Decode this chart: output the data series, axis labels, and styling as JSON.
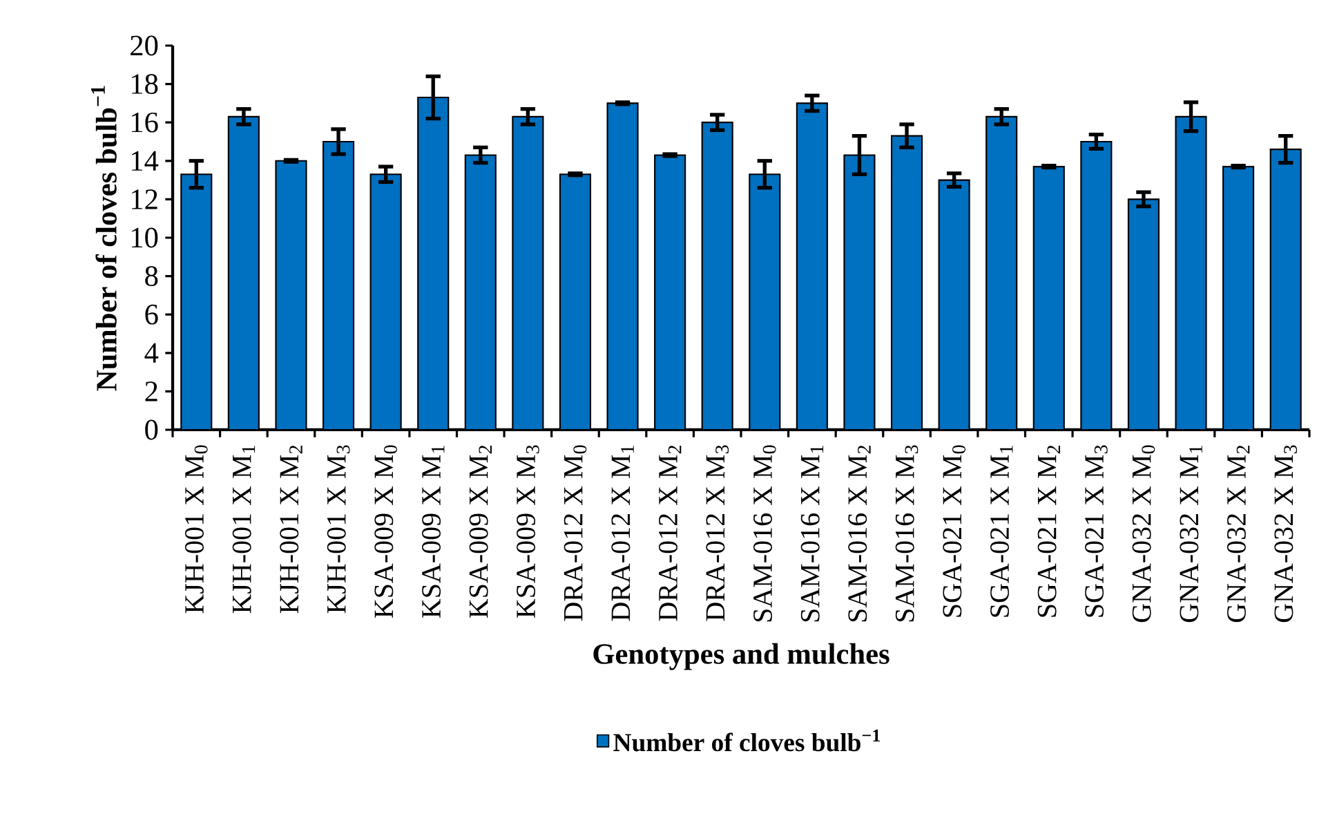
{
  "chart_data": {
    "type": "bar",
    "xlabel": "Genotypes and mulches",
    "ylabel": "Number of cloves bulb$^{−1}$",
    "categories": [
      "KJH-001 X M$_{0}$",
      "KJH-001 X M$_{1}$",
      "KJH-001 X M$_{2}$",
      "KJH-001 X M$_{3}$",
      "KSA-009 X M$_{0}$",
      "KSA-009 X M$_{1}$",
      "KSA-009 X M$_{2}$",
      "KSA-009 X M$_{3}$",
      "DRA-012 X M$_{0}$",
      "DRA-012 X M$_{1}$",
      "DRA-012 X M$_{2}$",
      "DRA-012 X M$_{3}$",
      "SAM-016 X M$_{0}$",
      "SAM-016 X M$_{1}$",
      "SAM-016 X M$_{2}$",
      "SAM-016 X M$_{3}$",
      "SGA-021 X M$_{0}$",
      "SGA-021 X M$_{1}$",
      "SGA-021 X M$_{2}$",
      "SGA-021 X M$_{3}$",
      "GNA-032 X M$_{0}$",
      "GNA-032 X M$_{1}$",
      "GNA-032 X M$_{2}$",
      "GNA-032 X M$_{3}$"
    ],
    "series": [
      {
        "name": "Number of cloves bulb$^{−1}$",
        "color": "#0070c0",
        "values": [
          13.3,
          16.3,
          14.0,
          15.0,
          13.3,
          17.3,
          14.3,
          16.3,
          13.3,
          17.0,
          14.3,
          16.0,
          13.3,
          17.0,
          14.3,
          15.3,
          13.0,
          16.3,
          13.7,
          15.0,
          12.0,
          16.3,
          13.7,
          14.6
        ],
        "errors": [
          0.7,
          0.4,
          0.05,
          0.65,
          0.4,
          1.1,
          0.4,
          0.4,
          0.05,
          0.05,
          0.05,
          0.4,
          0.7,
          0.4,
          1.0,
          0.6,
          0.35,
          0.4,
          0.05,
          0.37,
          0.37,
          0.75,
          0.05,
          0.7
        ]
      }
    ],
    "ylim": [
      0,
      20
    ],
    "yticks": [
      0,
      2,
      4,
      6,
      8,
      10,
      12,
      14,
      16,
      18,
      20
    ],
    "legend": "bottom",
    "grid": false
  }
}
